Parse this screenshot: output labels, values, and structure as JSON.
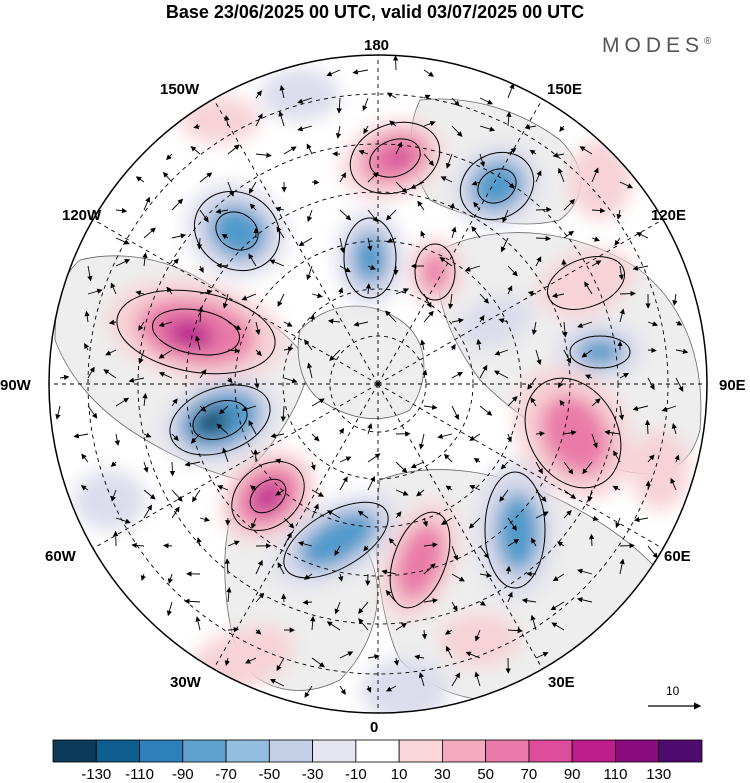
{
  "header": {
    "title": "Base 23/06/2025 00 UTC, valid 03/07/2025 00 UTC",
    "brand": "MODES",
    "brand_mark": "®"
  },
  "map": {
    "projection": "north-polar-stereographic",
    "longitude_labels": {
      "top": "180",
      "bottom": "0",
      "left": "90W",
      "right": "90E",
      "upper_left_1": "150W",
      "upper_left_2": "120W",
      "upper_right_1": "150E",
      "upper_right_2": "120E",
      "lower_left_1": "60W",
      "lower_left_2": "30W",
      "lower_right_1": "60E",
      "lower_right_2": "30E"
    },
    "reference_vector_label": "10",
    "colors": {
      "neg_strong": "#0d3a5c",
      "neg_mid": "#4f9acb",
      "neg_weak": "#dcdcec",
      "pos_weak": "#f7d2d6",
      "pos_mid": "#ea7aa7",
      "pos_strong": "#b81b8e",
      "land": "#eeeeee",
      "coast": "#666666"
    }
  },
  "colorbar": {
    "labels": [
      "-130",
      "-110",
      "-90",
      "-70",
      "-50",
      "-30",
      "-10",
      "10",
      "30",
      "50",
      "70",
      "90",
      "110",
      "130"
    ],
    "colors": [
      "#0c3a5a",
      "#0d5e8e",
      "#2d80b9",
      "#5fa2d0",
      "#94bee0",
      "#c4d0e8",
      "#e6e6f2",
      "#ffffff",
      "#fad8da",
      "#f3aabf",
      "#ea7aa7",
      "#dd4d9b",
      "#bf1d8b",
      "#8b0a7c",
      "#4e0a6e"
    ]
  }
}
